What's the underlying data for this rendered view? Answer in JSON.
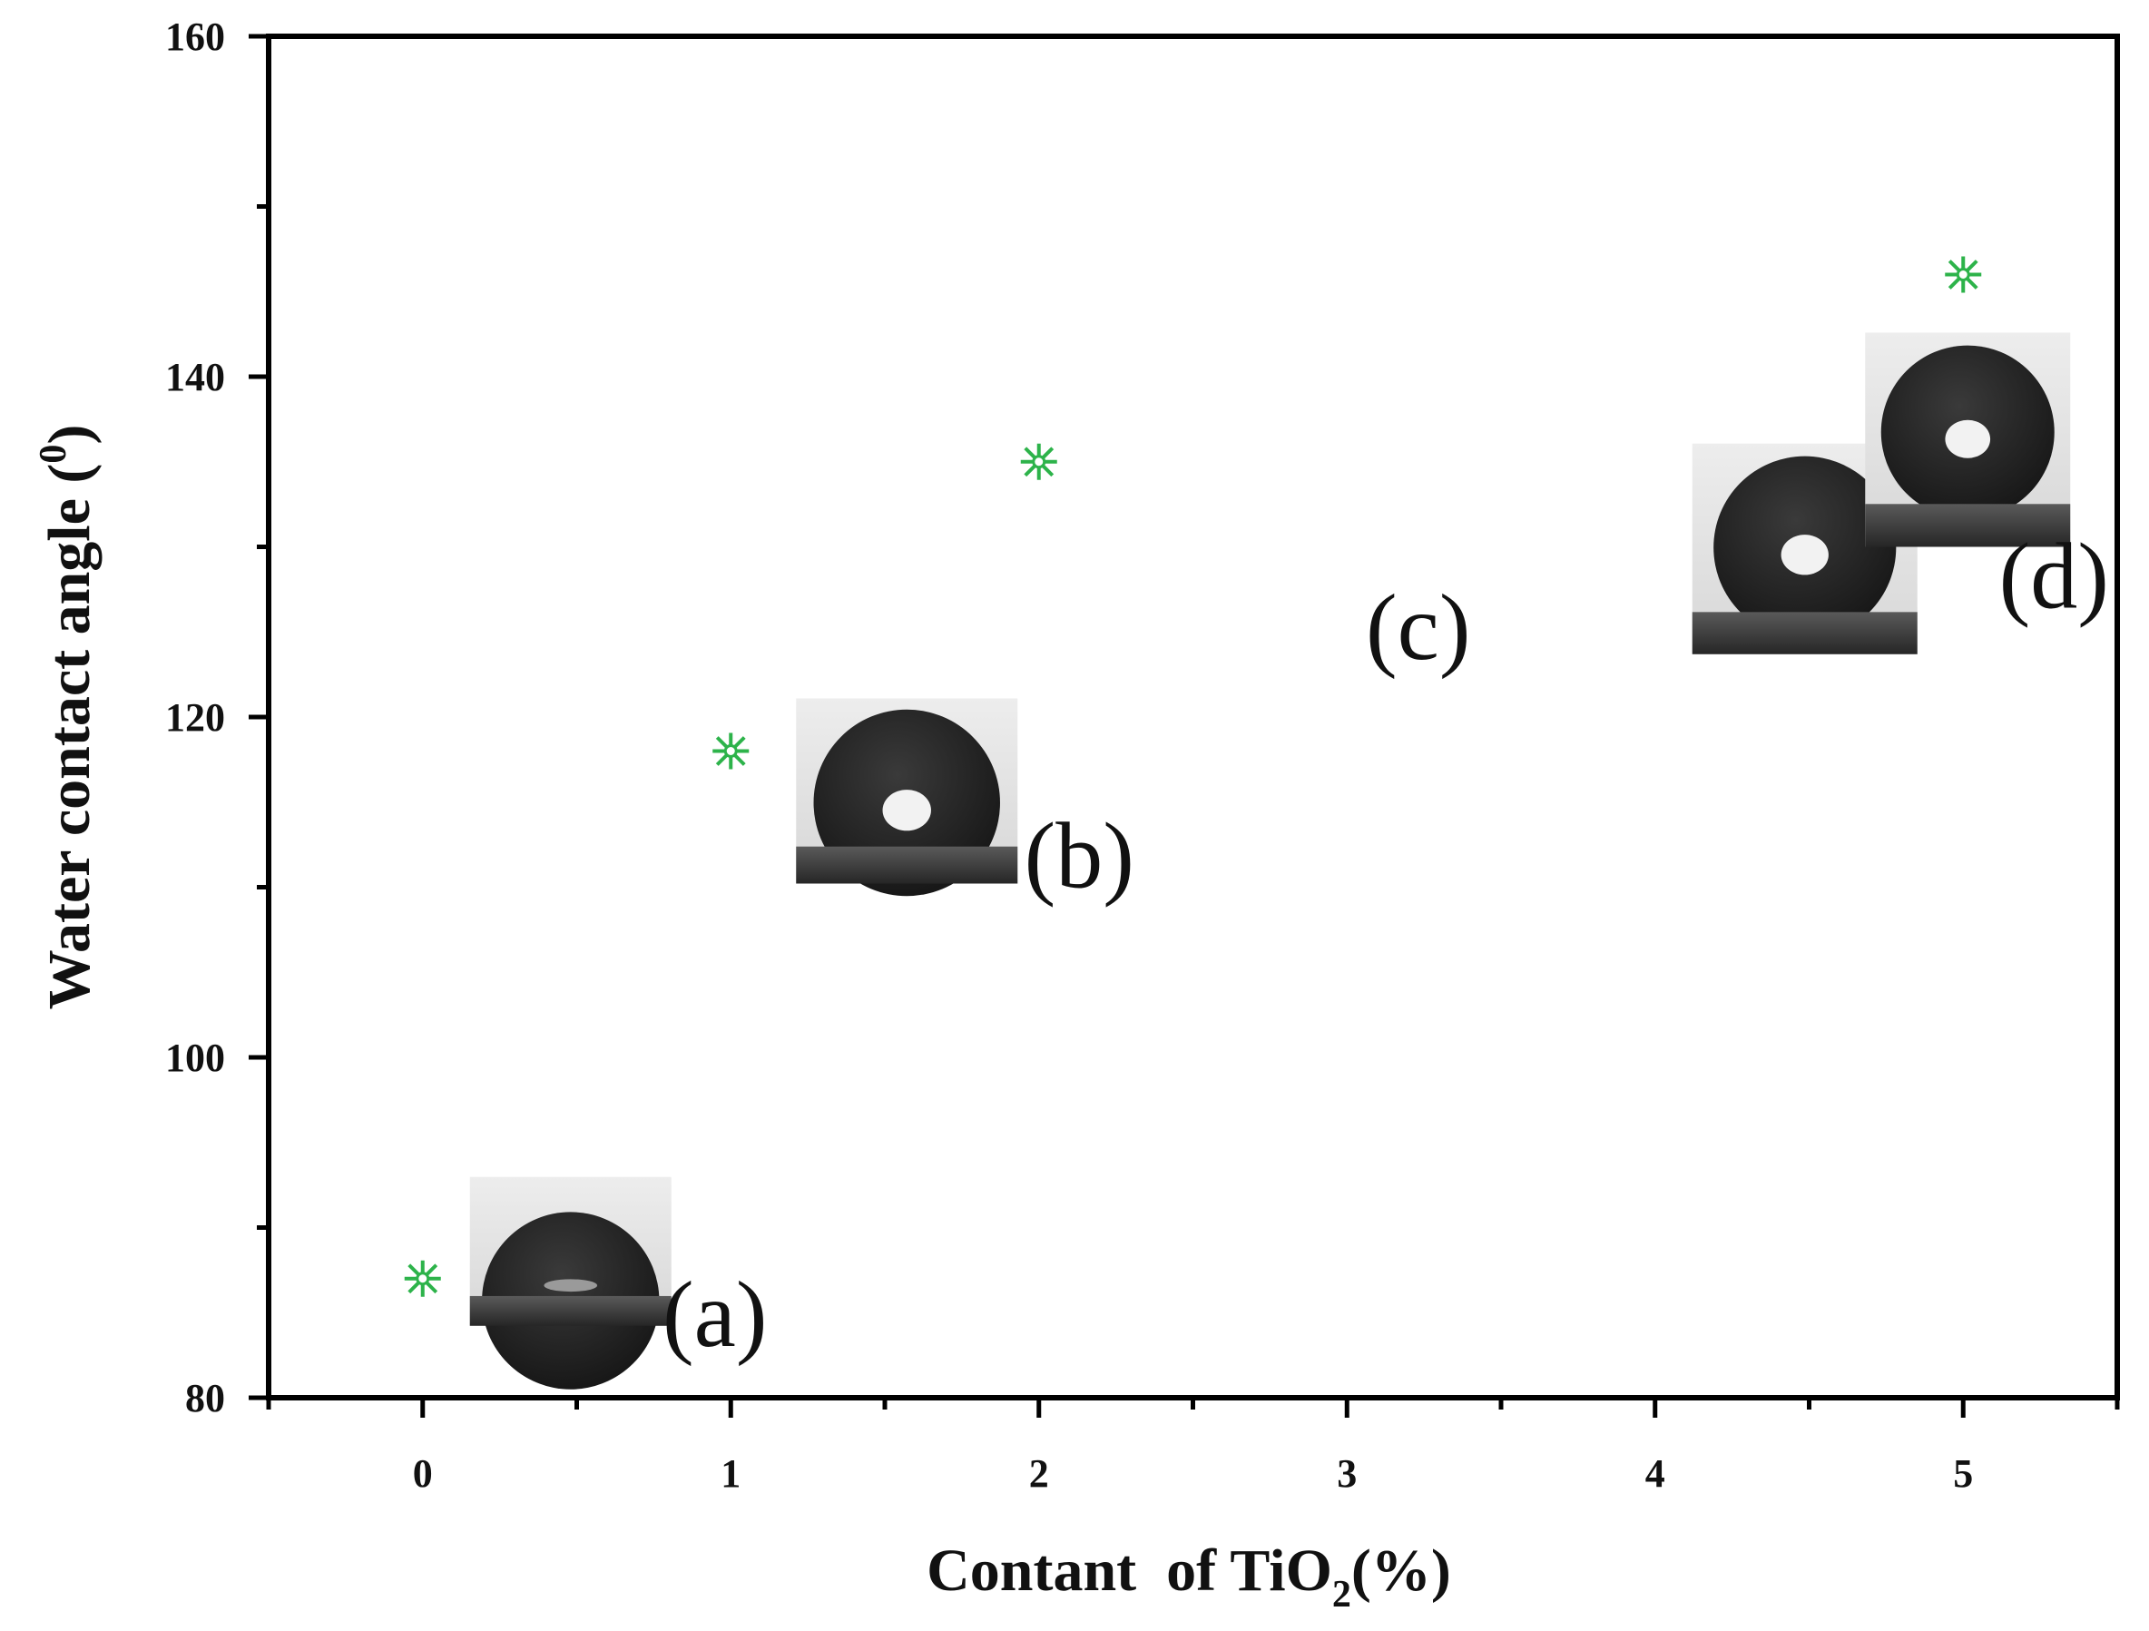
{
  "chart_data": {
    "type": "scatter",
    "title": "",
    "xlabel": "Contant  of TiO",
    "xlabel_subscript": "2",
    "xlabel_suffix": "(%)",
    "ylabel": "Water contact angle (",
    "ylabel_superscript": "0",
    "ylabel_suffix": ")",
    "xlim": [
      -0.5,
      5.5
    ],
    "ylim": [
      80,
      160
    ],
    "x_ticks": [
      0,
      1,
      2,
      3,
      4,
      5
    ],
    "y_ticks": [
      80,
      100,
      120,
      140,
      160
    ],
    "grid": false,
    "marker_color": "#2db34a",
    "points": [
      {
        "x": 0,
        "y": 87,
        "label": "(a)",
        "inset_angle": 87
      },
      {
        "x": 1,
        "y": 118,
        "label": "(b)",
        "inset_angle": 118
      },
      {
        "x": 2,
        "y": 135,
        "label": "(c)",
        "inset_angle": 135
      },
      {
        "x": 5,
        "y": 146,
        "label": "(d)",
        "inset_angle": 146
      }
    ]
  }
}
